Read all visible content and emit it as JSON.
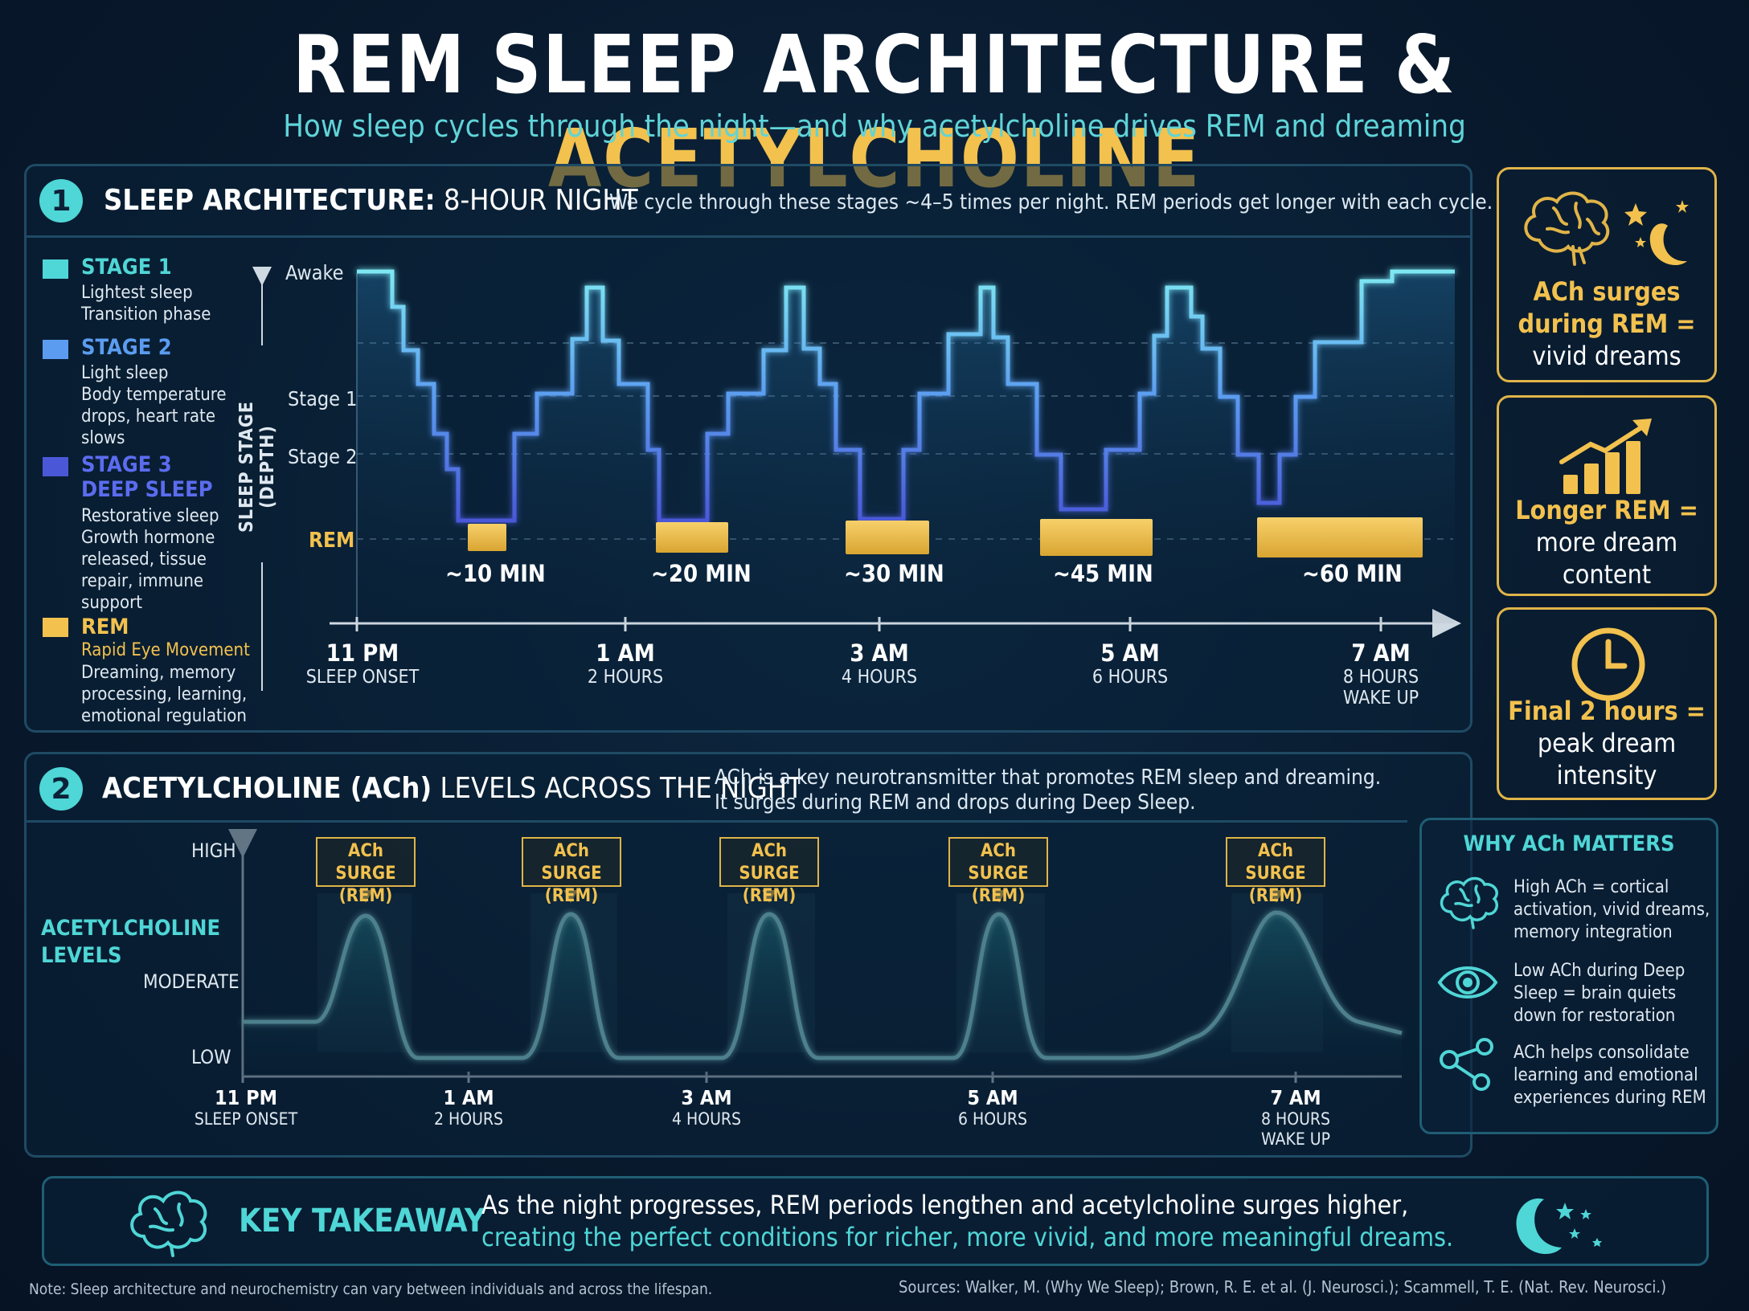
{
  "header": {
    "title_main": "REM SLEEP ARCHITECTURE & ",
    "title_accent": "ACETYLCHOLINE",
    "subtitle": "How sleep cycles through the night—and why acetylcholine drives REM and dreaming"
  },
  "section1": {
    "number": "1",
    "title_bold": "SLEEP ARCHITECTURE:",
    "title_light": " 8-HOUR NIGHT",
    "note": "We cycle through these stages ~4–5 times per night. REM periods get longer with each cycle.",
    "legend": [
      {
        "name": "STAGE 1",
        "subname": "",
        "lines": [
          "Lightest sleep",
          "Transition phase"
        ],
        "color": "#4fd6d6"
      },
      {
        "name": "STAGE 2",
        "subname": "",
        "lines": [
          "Light sleep",
          "Body temperature",
          "drops, heart rate",
          "slows"
        ],
        "color": "#5b9cf0"
      },
      {
        "name": "STAGE 3",
        "subname": "DEEP SLEEP",
        "lines": [
          "Restorative sleep",
          "Growth hormone",
          "released, tissue",
          "repair, immune",
          "support"
        ],
        "color": "#4a58d8"
      },
      {
        "name": "REM",
        "subname": "Rapid Eye Movement",
        "lines": [
          "Dreaming, memory",
          "processing, learning,",
          "emotional regulation"
        ],
        "color": "#f2c14e"
      }
    ],
    "y_axis_label": "SLEEP STAGE (DEPTH)",
    "y_levels": [
      "Awake",
      "Stage 1",
      "Stage 2",
      "REM"
    ],
    "rem_labels": [
      "~10 MIN",
      "~20 MIN",
      "~30 MIN",
      "~45 MIN",
      "~60 MIN"
    ],
    "x_ticks": [
      {
        "time": "11 PM",
        "sub": "SLEEP ONSET",
        "sub2": ""
      },
      {
        "time": "1 AM",
        "sub": "2 HOURS",
        "sub2": ""
      },
      {
        "time": "3 AM",
        "sub": "4 HOURS",
        "sub2": ""
      },
      {
        "time": "5 AM",
        "sub": "6 HOURS",
        "sub2": ""
      },
      {
        "time": "7 AM",
        "sub": "8 HOURS",
        "sub2": "WAKE UP"
      }
    ]
  },
  "section2": {
    "number": "2",
    "title_bold": "ACETYLCHOLINE (ACh)",
    "title_light": " LEVELS ACROSS THE NIGHT",
    "note_line1": "ACh is a key neurotransmitter that promotes REM sleep and dreaming.",
    "note_line2": "It surges during REM and drops during Deep Sleep.",
    "y_title_line1": "ACETYLCHOLINE",
    "y_title_line2": "LEVELS",
    "y_levels": [
      "HIGH",
      "MODERATE",
      "LOW"
    ],
    "surge_label_line1": "ACh SURGE",
    "surge_label_line2": "(REM)",
    "x_ticks": [
      {
        "time": "11 PM",
        "sub": "SLEEP ONSET",
        "sub2": ""
      },
      {
        "time": "1 AM",
        "sub": "2 HOURS",
        "sub2": ""
      },
      {
        "time": "3 AM",
        "sub": "4 HOURS",
        "sub2": ""
      },
      {
        "time": "5 AM",
        "sub": "6 HOURS",
        "sub2": ""
      },
      {
        "time": "7 AM",
        "sub": "8 HOURS",
        "sub2": "WAKE UP"
      }
    ]
  },
  "side_cards": [
    {
      "gold": "ACh surges",
      "white1": "during REM =",
      "white2": "vivid dreams",
      "icon": "brain-moon-icon"
    },
    {
      "gold": "Longer REM =",
      "white1": "more dream",
      "white2": "content",
      "icon": "rising-bars-icon"
    },
    {
      "gold": "Final 2 hours =",
      "white1": "peak dream",
      "white2": "intensity",
      "icon": "clock-icon"
    }
  ],
  "why": {
    "title": "WHY ACh MATTERS",
    "items": [
      {
        "icon": "brain-icon",
        "lines": [
          "High ACh = cortical",
          "activation, vivid dreams,",
          "memory integration"
        ]
      },
      {
        "icon": "eye-icon",
        "lines": [
          "Low ACh during Deep",
          "Sleep = brain quiets",
          "down for restoration"
        ]
      },
      {
        "icon": "network-icon",
        "lines": [
          "ACh helps consolidate",
          "learning and emotional",
          "experiences during REM"
        ]
      }
    ]
  },
  "takeaway": {
    "title": "KEY TAKEAWAY",
    "line1": "As the night progresses, REM periods lengthen and acetylcholine surges higher,",
    "line2": "creating the perfect conditions for richer, more vivid, and more meaningful dreams."
  },
  "footer": {
    "note": "Note: Sleep architecture and neurochemistry can vary between individuals and across the lifespan.",
    "sources": "Sources: Walker, M. (Why We Sleep); Brown, R. E. et al. (J. Neurosci.); Scammell, T. E. (Nat. Rev. Neurosci.)"
  },
  "colors": {
    "accent_teal": "#4fd6d6",
    "accent_gold": "#f2c14e",
    "stage2_blue": "#5b9cf0",
    "stage3_indigo": "#4a58d8",
    "background": "#091a2e"
  }
}
